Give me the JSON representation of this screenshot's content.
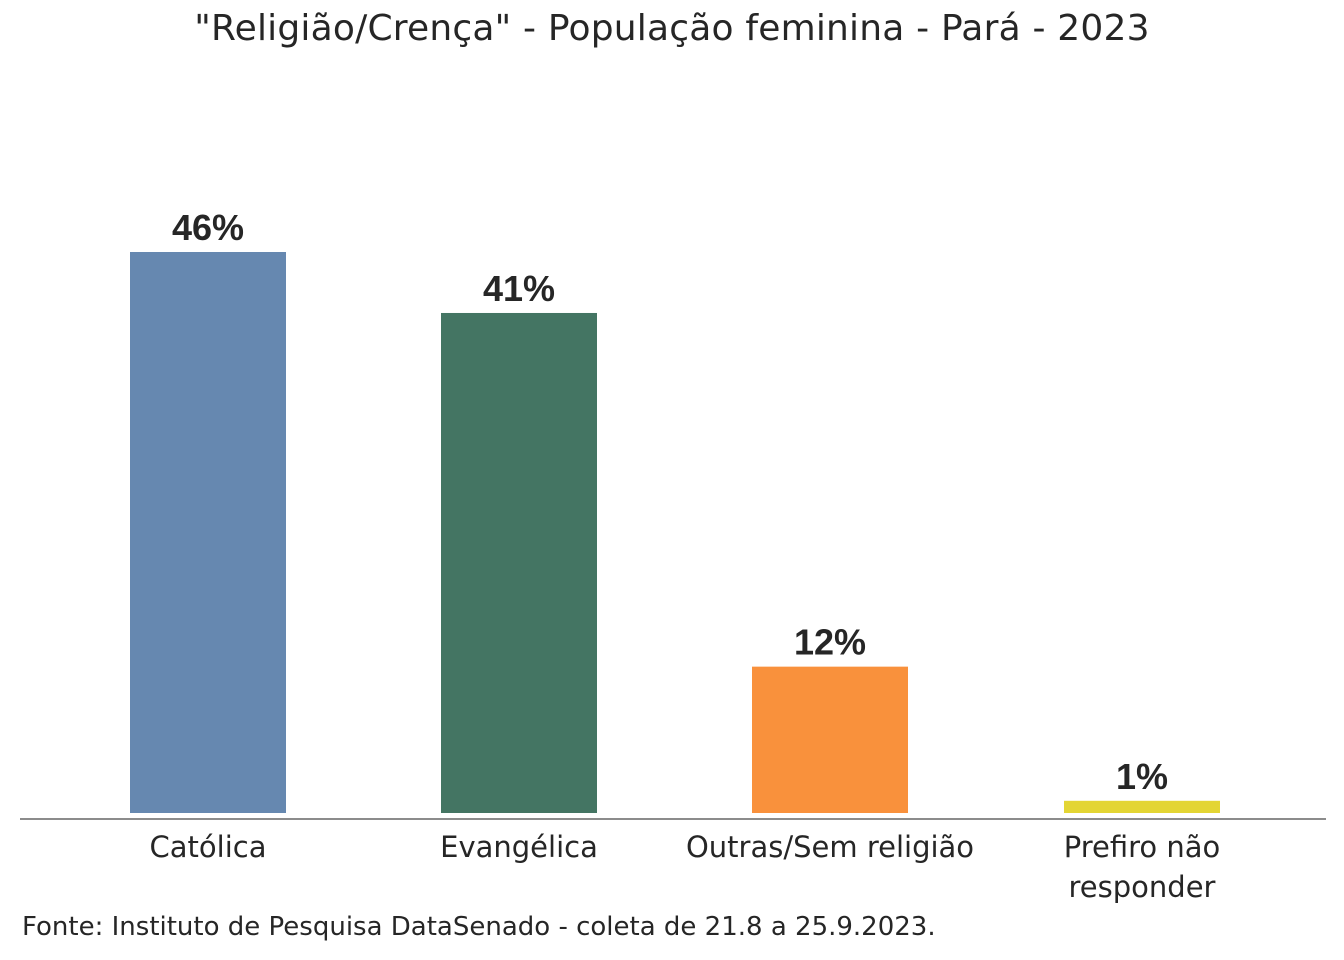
{
  "chart_data": {
    "type": "bar",
    "title": "\"Religião/Crença\" - População feminina - Pará - 2023",
    "categories": [
      "Católica",
      "Evangélica",
      "Outras/Sem religião",
      "Prefiro não responder"
    ],
    "values": [
      46,
      41,
      12,
      1
    ],
    "value_labels": [
      "46%",
      "41%",
      "12%",
      "1%"
    ],
    "colors": [
      "#6688b0",
      "#447563",
      "#f9913c",
      "#e3d534"
    ],
    "xlabel": "",
    "ylabel": "",
    "ylim": [
      0,
      52
    ],
    "grid": false,
    "legend": "none"
  },
  "footer": "Fonte: Instituto de Pesquisa DataSenado - coleta de 21.8 a 25.9.2023."
}
